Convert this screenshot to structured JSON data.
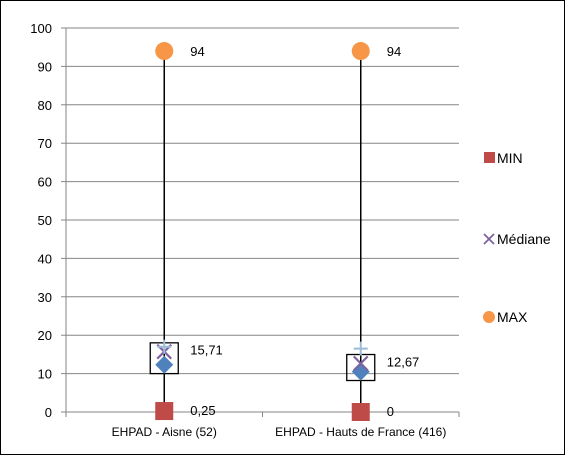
{
  "chart_data": {
    "type": "scatter",
    "categories": [
      "EHPAD - Aisne (52)",
      "EHPAD - Hauts de France (416)"
    ],
    "ylim": [
      0,
      100
    ],
    "y_ticks": [
      0,
      10,
      20,
      30,
      40,
      50,
      60,
      70,
      80,
      90,
      100
    ],
    "grid": true,
    "legend_position": "right",
    "series": [
      {
        "name": "MIN",
        "marker": "square",
        "color": "#be4b48",
        "values": [
          0.25,
          0
        ]
      },
      {
        "name": "Médiane",
        "marker": "x",
        "color": "#7e649e",
        "values": [
          15.71,
          12.67
        ]
      },
      {
        "name": "MAX",
        "marker": "circle",
        "color": "#f79646",
        "values": [
          94,
          94
        ]
      }
    ],
    "extra_markers": [
      {
        "marker": "diamond",
        "color": "#4f81bd",
        "values": [
          12.3,
          10.5
        ]
      },
      {
        "marker": "plus",
        "color": "#9bbbd9",
        "values": [
          17,
          16.5
        ]
      }
    ],
    "data_labels": {
      "MIN": [
        "0,25",
        "0"
      ],
      "Médiane": [
        "15,71",
        "12,67"
      ],
      "MAX": [
        "94",
        "94"
      ]
    }
  }
}
